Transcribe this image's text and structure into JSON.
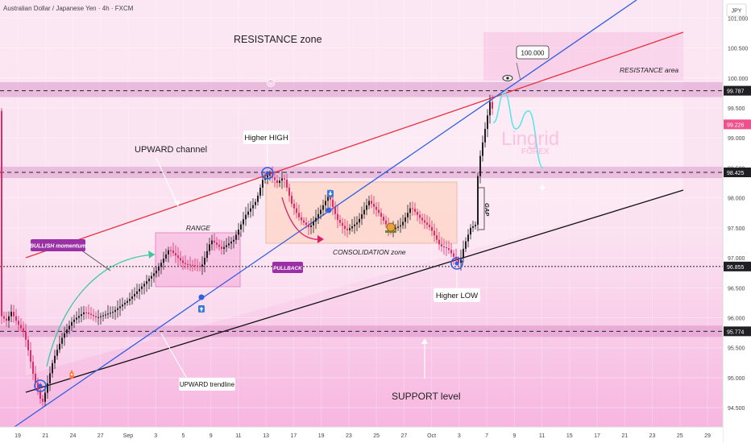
{
  "header": {
    "title": "Australian Dollar / Japanese Yen · 4h · FXCM"
  },
  "currency_label": "JPY",
  "chart_data": {
    "type": "candlestick",
    "symbol": "AUDJPY",
    "timeframe": "4h",
    "ylim": [
      94.18,
      101.3
    ],
    "y_ticks": [
      "101.000",
      "100.500",
      "100.000",
      "99.500",
      "99.000",
      "98.500",
      "98.000",
      "97.500",
      "97.000",
      "96.500",
      "96.000",
      "95.500",
      "95.000",
      "94.500"
    ],
    "x_ticks": [
      "19",
      "21",
      "24",
      "27",
      "Sep",
      "3",
      "5",
      "9",
      "11",
      "13",
      "17",
      "19",
      "23",
      "25",
      "27",
      "Oct",
      "3",
      "7",
      "9",
      "11",
      "15",
      "17",
      "21",
      "23",
      "25",
      "29"
    ],
    "price_labels": [
      {
        "value": 99.787,
        "label": "99.787",
        "style": "dark"
      },
      {
        "value": 99.226,
        "label": "99.226",
        "style": "current"
      },
      {
        "value": 98.425,
        "label": "98.425",
        "style": "dark"
      },
      {
        "value": 96.855,
        "label": "96.855",
        "style": "dark"
      },
      {
        "value": 95.774,
        "label": "95.774",
        "style": "dark"
      }
    ],
    "target": {
      "label": "100.000"
    },
    "zones": [
      {
        "name": "RESISTANCE zone",
        "from": 99.68,
        "to": 99.93
      },
      {
        "name": "98.425 zone",
        "from": 98.33,
        "to": 98.52
      },
      {
        "name": "SUPPORT level",
        "from": 95.68,
        "to": 95.87
      }
    ],
    "annotations": [
      "RESISTANCE zone",
      "RESISTANCE area",
      "UPWARD channel",
      "Higher HIGH",
      "RANGE",
      "BULLISH momentum",
      "PULLBACK",
      "CONSOLIDATION zone",
      "Higher LOW",
      "GAP",
      "UPWARD trendline",
      "SUPPORT level"
    ],
    "series": [
      {
        "name": "AUDJPY",
        "ohlc_anchor_path": [
          [
            0,
            96.05
          ],
          [
            8,
            95.95
          ],
          [
            14,
            96.1
          ],
          [
            22,
            95.9
          ],
          [
            30,
            95.75
          ],
          [
            36,
            95.4
          ],
          [
            42,
            95.0
          ],
          [
            48,
            94.75
          ],
          [
            52,
            94.55
          ],
          [
            58,
            94.85
          ],
          [
            66,
            95.3
          ],
          [
            78,
            95.7
          ],
          [
            90,
            95.95
          ],
          [
            105,
            96.1
          ],
          [
            120,
            96.0
          ],
          [
            140,
            96.1
          ],
          [
            160,
            96.3
          ],
          [
            178,
            96.55
          ],
          [
            195,
            96.8
          ],
          [
            210,
            97.15
          ],
          [
            228,
            96.9
          ],
          [
            250,
            96.85
          ],
          [
            262,
            97.3
          ],
          [
            275,
            97.15
          ],
          [
            290,
            97.3
          ],
          [
            304,
            97.7
          ],
          [
            318,
            97.95
          ],
          [
            326,
            98.3
          ],
          [
            334,
            98.4
          ],
          [
            344,
            98.25
          ],
          [
            352,
            98.35
          ],
          [
            362,
            97.9
          ],
          [
            372,
            97.65
          ],
          [
            384,
            97.5
          ],
          [
            396,
            97.75
          ],
          [
            408,
            98.05
          ],
          [
            418,
            97.65
          ],
          [
            430,
            97.45
          ],
          [
            444,
            97.6
          ],
          [
            458,
            97.95
          ],
          [
            470,
            97.75
          ],
          [
            484,
            97.45
          ],
          [
            498,
            97.55
          ],
          [
            510,
            97.85
          ],
          [
            522,
            97.65
          ],
          [
            534,
            97.5
          ],
          [
            546,
            97.2
          ],
          [
            556,
            97.15
          ],
          [
            564,
            97.0
          ],
          [
            570,
            96.9
          ],
          [
            576,
            97.2
          ],
          [
            584,
            97.5
          ],
          [
            590,
            97.55
          ],
          [
            592,
            98.25
          ],
          [
            596,
            98.7
          ],
          [
            600,
            99.0
          ],
          [
            604,
            99.3
          ],
          [
            608,
            99.6
          ],
          [
            612,
            99.45
          ]
        ]
      }
    ],
    "projection": [
      [
        612,
        99.25
      ],
      [
        626,
        99.75
      ],
      [
        640,
        99.15
      ],
      [
        656,
        99.45
      ],
      [
        674,
        98.5
      ]
    ]
  }
}
